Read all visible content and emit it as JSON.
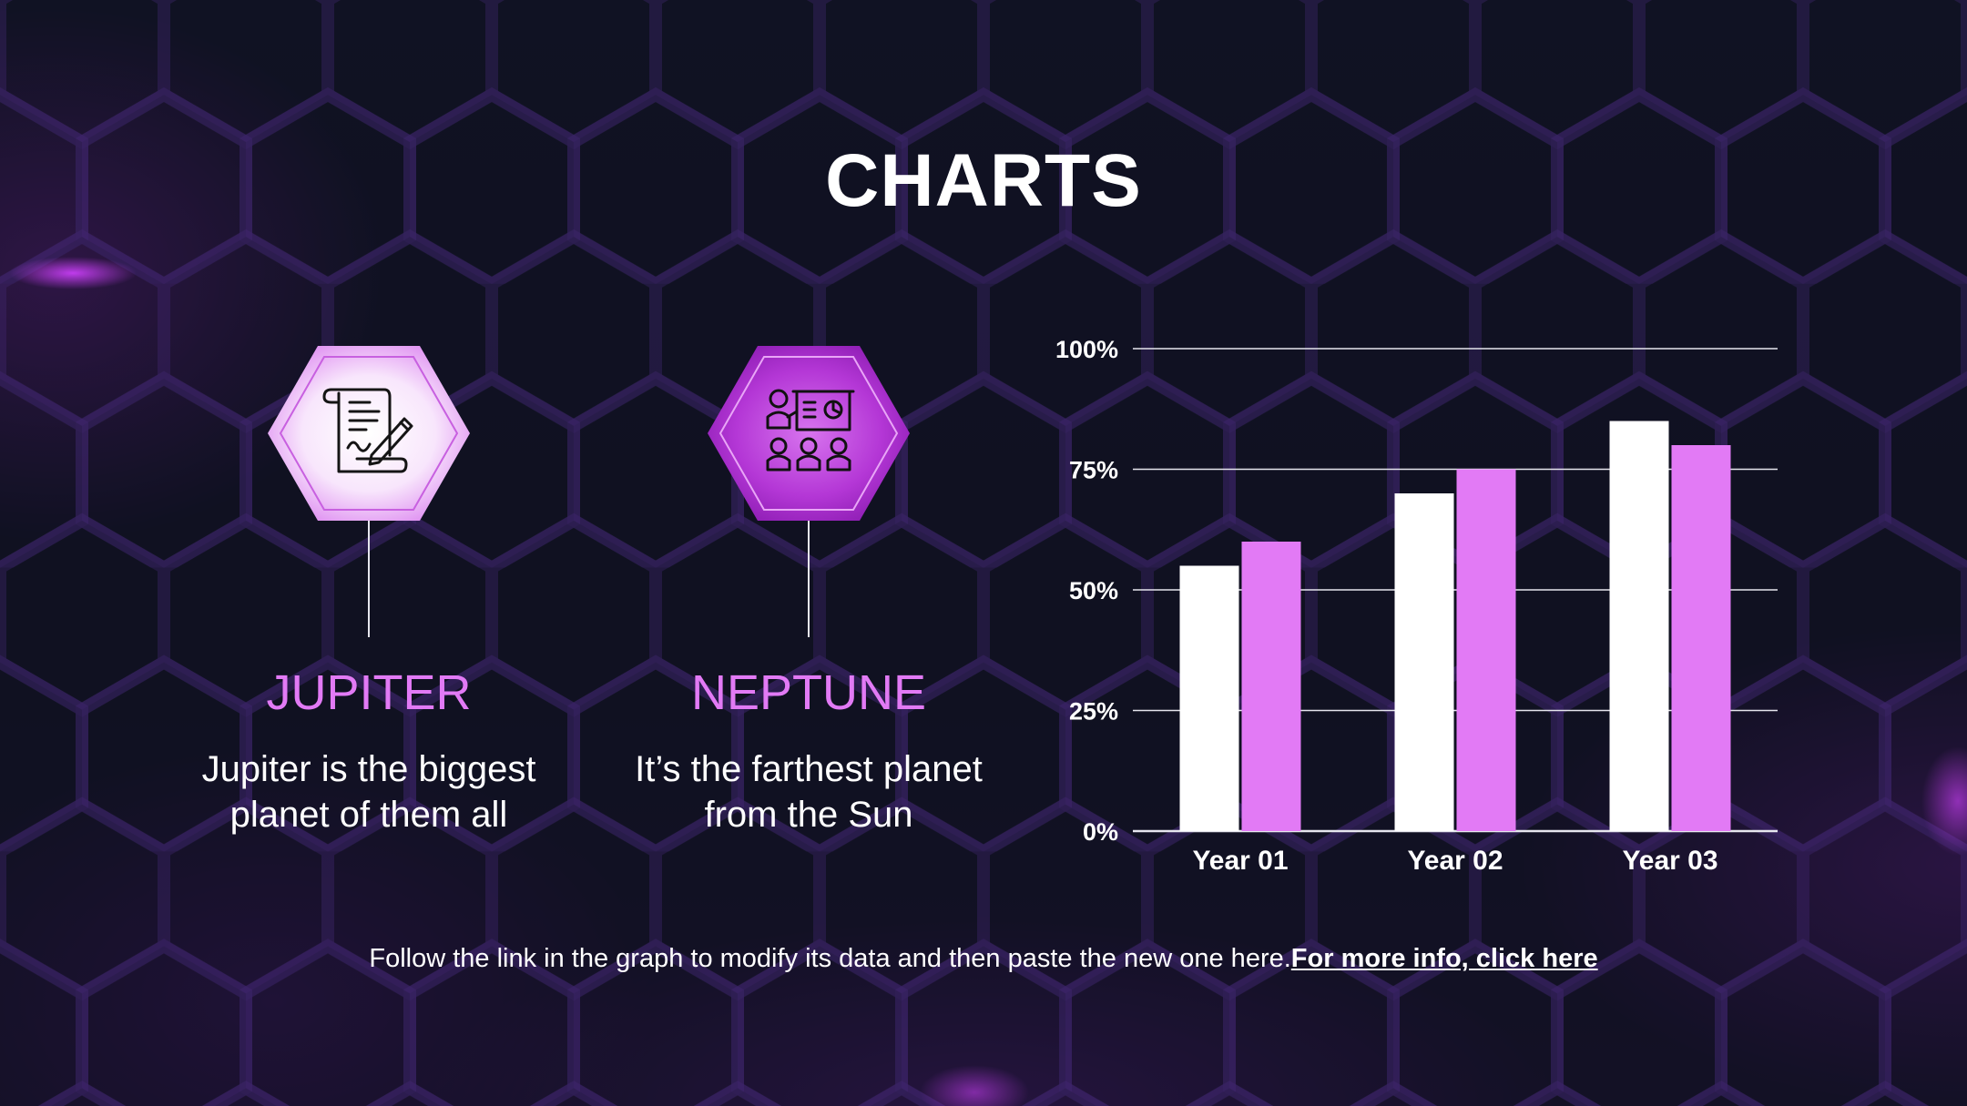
{
  "slide": {
    "title": "CHARTS",
    "accent_color": "#e27af5",
    "planets": [
      {
        "name": "JUPITER",
        "description_line1": "Jupiter is the biggest",
        "description_line2": "planet of them all",
        "icon": "contract-document-icon"
      },
      {
        "name": "NEPTUNE",
        "description_line1": "It’s the farthest planet",
        "description_line2": "from the Sun",
        "icon": "presentation-audience-icon"
      }
    ],
    "footer": {
      "text": "Follow the link in the graph to modify its data and then paste the new one here.",
      "link_text": "For more info, click here"
    }
  },
  "chart_data": {
    "type": "bar",
    "categories": [
      "Year 01",
      "Year 02",
      "Year 03"
    ],
    "series": [
      {
        "values": [
          55,
          70,
          85
        ],
        "color": "#ffffff"
      },
      {
        "values": [
          60,
          75,
          80
        ],
        "color": "#e27af5"
      }
    ],
    "ylim": [
      0,
      100
    ],
    "yticks": [
      0,
      25,
      50,
      75,
      100
    ],
    "ytick_labels": [
      "0%",
      "25%",
      "50%",
      "75%",
      "100%"
    ],
    "grid": true,
    "legend": "none"
  }
}
